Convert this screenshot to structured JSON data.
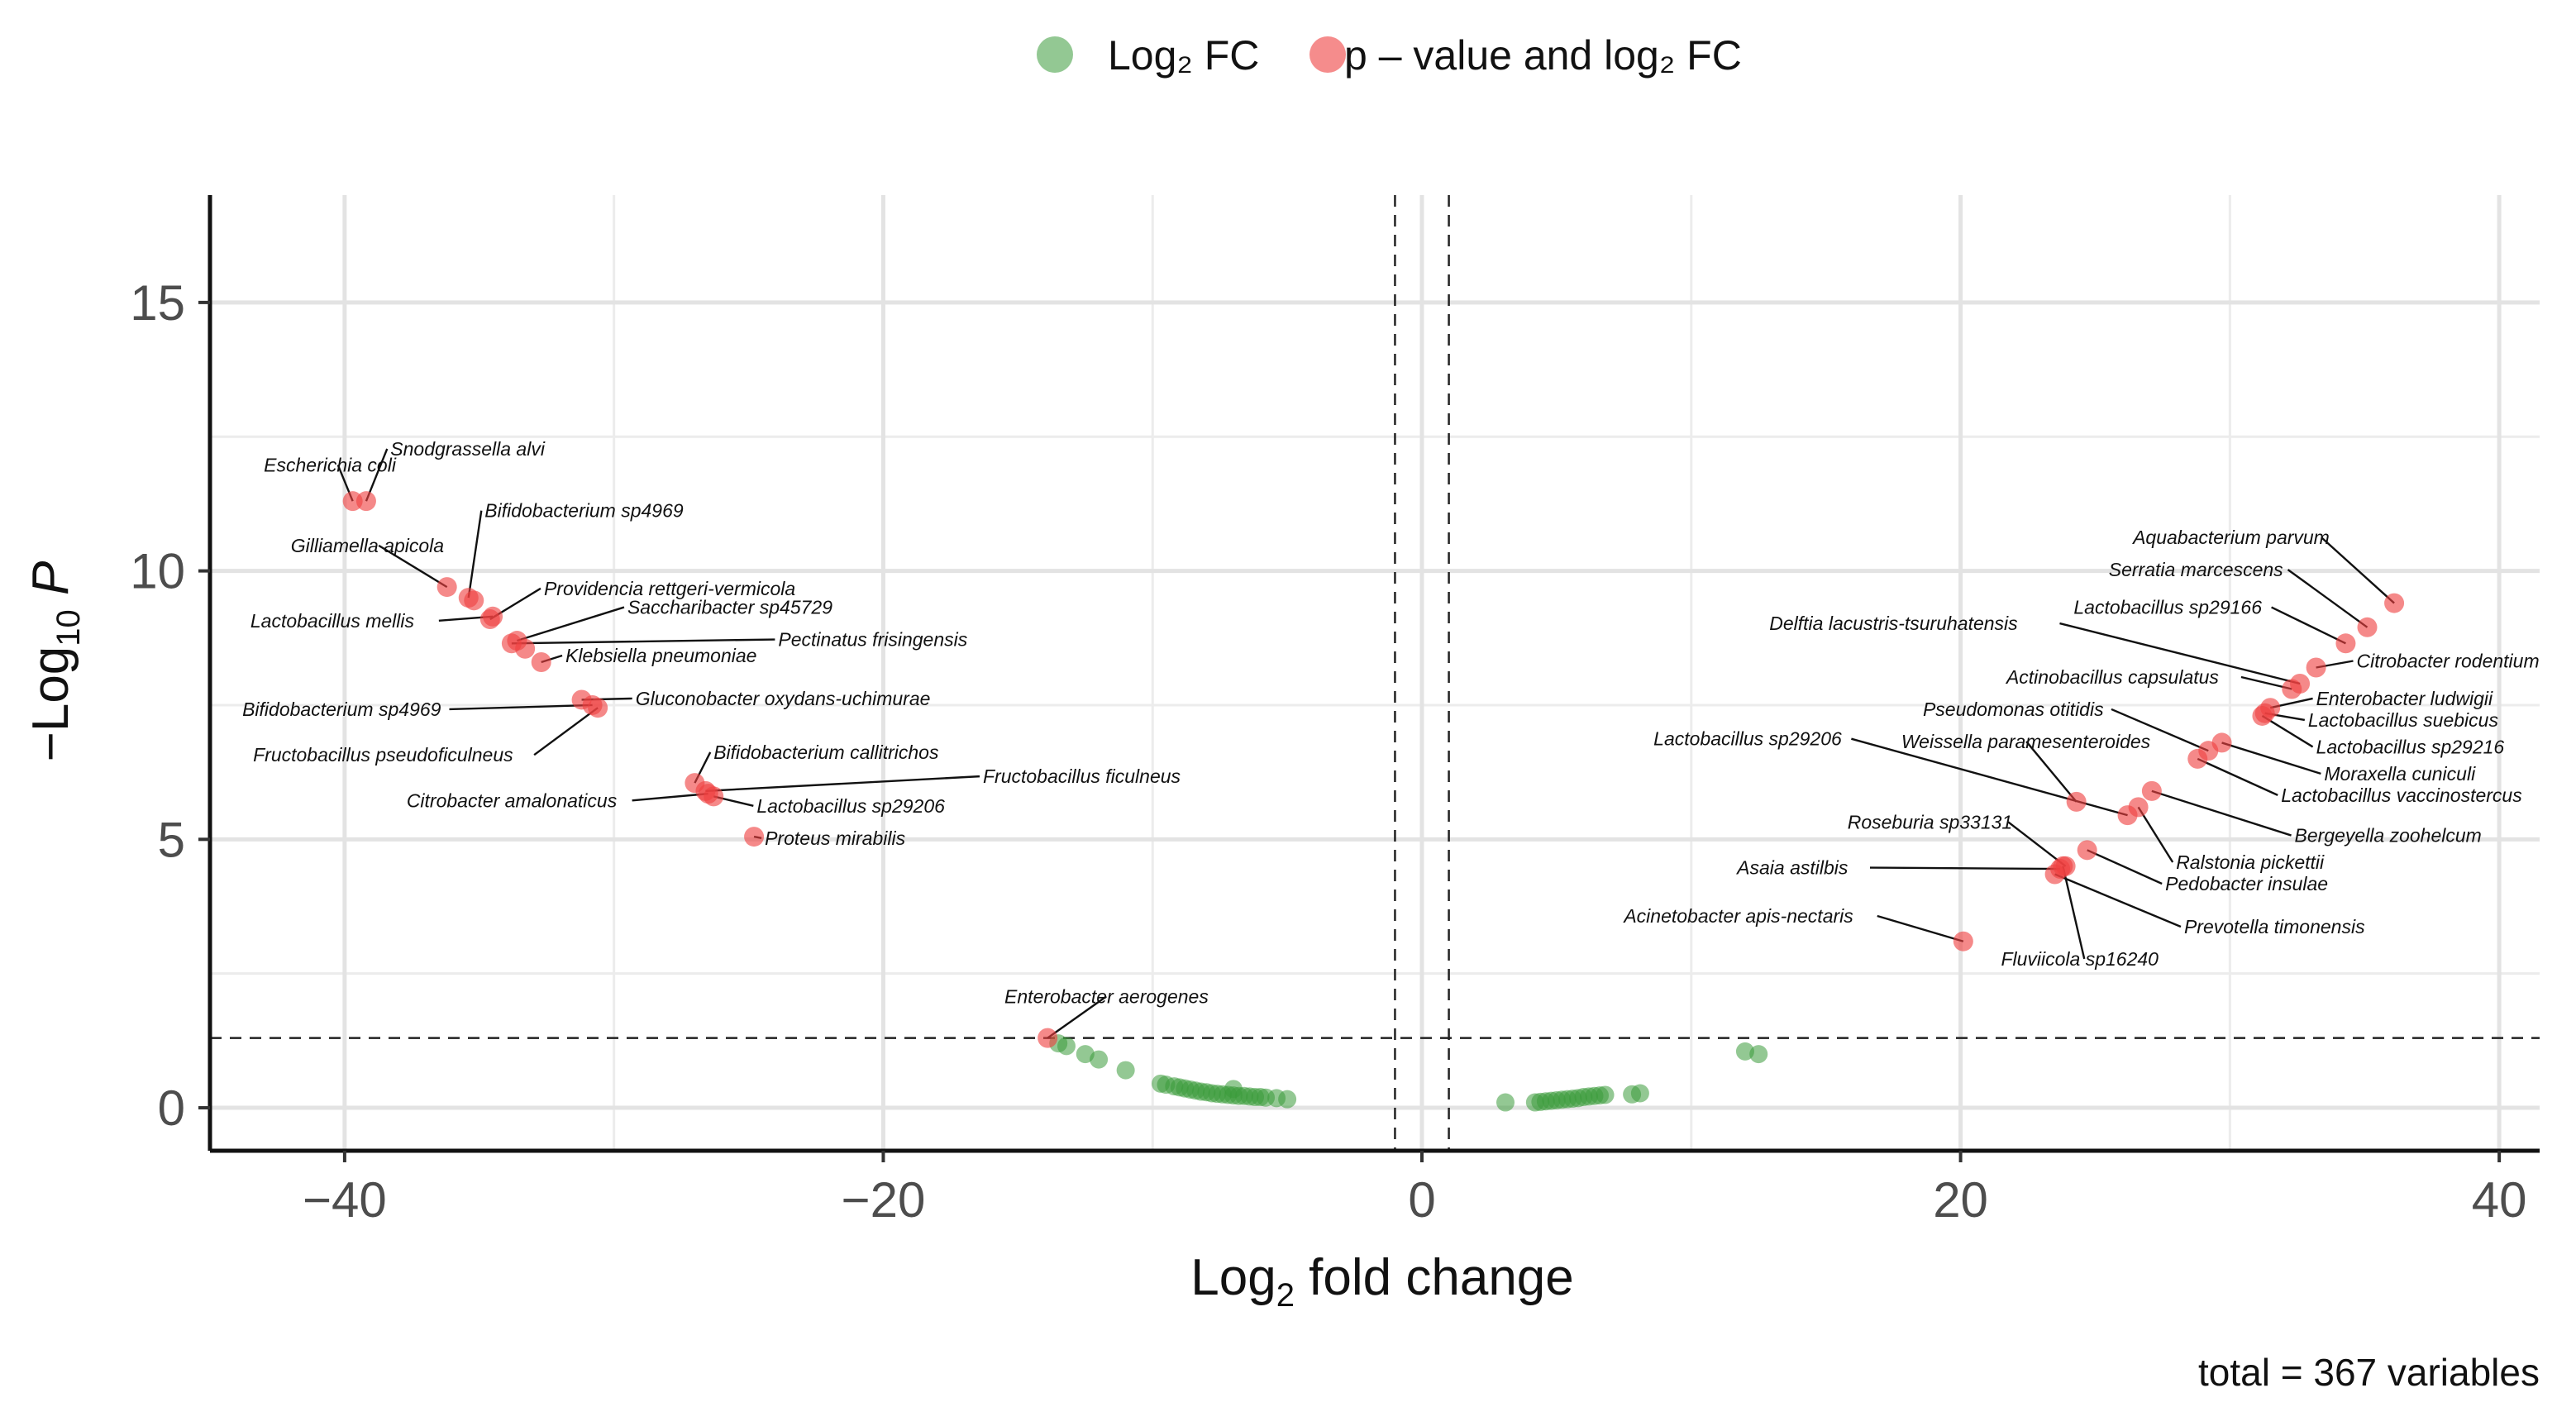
{
  "chart_data": {
    "type": "scatter",
    "title": "",
    "xlabel": "Log2 fold change",
    "ylabel": "-Log10 P",
    "xlim": [
      -45,
      41.5
    ],
    "ylim": [
      -0.8,
      17
    ],
    "x_ticks": [
      -40,
      -20,
      0,
      20,
      40
    ],
    "x_tick_labels": [
      "−40",
      "−20",
      "0",
      "20",
      "40"
    ],
    "y_ticks": [
      0,
      5,
      10,
      15
    ],
    "y_tick_labels": [
      "0",
      "5",
      "10",
      "15"
    ],
    "grid": true,
    "cutoffs": {
      "log2fc": [
        -1,
        1
      ],
      "neg_log10_p": 1.3
    },
    "legend": {
      "position": "top",
      "entries": [
        {
          "name": "Log₂ FC",
          "color": "#3a9a3a"
        },
        {
          "name": "p – value and log₂ FC",
          "color": "#ef4040"
        }
      ]
    },
    "caption": "total = 367 variables",
    "series": [
      {
        "name": "Log₂ FC",
        "color": "#3a9a3a",
        "points": [
          {
            "x": -13.5,
            "y": 1.2
          },
          {
            "x": -13.2,
            "y": 1.15
          },
          {
            "x": -12.5,
            "y": 1.0
          },
          {
            "x": -12.0,
            "y": 0.9
          },
          {
            "x": -11.0,
            "y": 0.7
          },
          {
            "x": -9.7,
            "y": 0.45
          },
          {
            "x": -9.5,
            "y": 0.43
          },
          {
            "x": -9.2,
            "y": 0.4
          },
          {
            "x": -9.0,
            "y": 0.38
          },
          {
            "x": -8.8,
            "y": 0.36
          },
          {
            "x": -8.6,
            "y": 0.34
          },
          {
            "x": -8.4,
            "y": 0.32
          },
          {
            "x": -8.2,
            "y": 0.3
          },
          {
            "x": -8.0,
            "y": 0.29
          },
          {
            "x": -7.8,
            "y": 0.27
          },
          {
            "x": -7.6,
            "y": 0.26
          },
          {
            "x": -7.4,
            "y": 0.25
          },
          {
            "x": -7.2,
            "y": 0.24
          },
          {
            "x": -7.0,
            "y": 0.23
          },
          {
            "x": -6.8,
            "y": 0.22
          },
          {
            "x": -6.6,
            "y": 0.22
          },
          {
            "x": -6.4,
            "y": 0.21
          },
          {
            "x": -6.2,
            "y": 0.2
          },
          {
            "x": -6.0,
            "y": 0.2
          },
          {
            "x": -5.8,
            "y": 0.19
          },
          {
            "x": -7.0,
            "y": 0.35
          },
          {
            "x": -5.4,
            "y": 0.18
          },
          {
            "x": -5.0,
            "y": 0.16
          },
          {
            "x": 3.1,
            "y": 0.1
          },
          {
            "x": 4.2,
            "y": 0.1
          },
          {
            "x": 4.4,
            "y": 0.11
          },
          {
            "x": 4.6,
            "y": 0.12
          },
          {
            "x": 4.8,
            "y": 0.13
          },
          {
            "x": 5.0,
            "y": 0.14
          },
          {
            "x": 5.2,
            "y": 0.15
          },
          {
            "x": 5.4,
            "y": 0.16
          },
          {
            "x": 5.6,
            "y": 0.17
          },
          {
            "x": 5.8,
            "y": 0.18
          },
          {
            "x": 6.0,
            "y": 0.2
          },
          {
            "x": 6.2,
            "y": 0.21
          },
          {
            "x": 6.4,
            "y": 0.22
          },
          {
            "x": 6.6,
            "y": 0.23
          },
          {
            "x": 6.8,
            "y": 0.24
          },
          {
            "x": 7.8,
            "y": 0.25
          },
          {
            "x": 8.1,
            "y": 0.27
          },
          {
            "x": 12.0,
            "y": 1.05
          },
          {
            "x": 12.5,
            "y": 1.0
          }
        ]
      },
      {
        "name": "p – value and log₂ FC",
        "color": "#ef4040",
        "points": [
          {
            "x": -39.7,
            "y": 11.3,
            "label": "Escherichia coli",
            "lx": -43.0,
            "ly": 11.85,
            "anchor": "start"
          },
          {
            "x": -39.2,
            "y": 11.3,
            "label": "Snodgrassella alvi",
            "lx": -38.3,
            "ly": 12.15,
            "anchor": "start"
          },
          {
            "x": -36.2,
            "y": 9.7,
            "label": "Gilliamella apicola",
            "lx": -42.0,
            "ly": 10.35,
            "anchor": "start"
          },
          {
            "x": -35.4,
            "y": 9.5,
            "label": "Bifidobacterium sp4969",
            "lx": -34.8,
            "ly": 11.0,
            "anchor": "start"
          },
          {
            "x": -35.2,
            "y": 9.45,
            "label": "",
            "lx": 0,
            "ly": 0,
            "anchor": "start"
          },
          {
            "x": -34.5,
            "y": 9.15,
            "label": "Lactobacillus mellis",
            "lx": -43.5,
            "ly": 8.95,
            "anchor": "start"
          },
          {
            "x": -34.6,
            "y": 9.1,
            "label": "Providencia rettgeri-vermicola",
            "lx": -32.6,
            "ly": 9.55,
            "anchor": "start"
          },
          {
            "x": -33.6,
            "y": 8.7,
            "label": "Saccharibacter sp45729",
            "lx": -29.5,
            "ly": 9.2,
            "anchor": "start"
          },
          {
            "x": -33.8,
            "y": 8.65,
            "label": "Pectinatus frisingensis",
            "lx": -23.9,
            "ly": 8.6,
            "anchor": "start"
          },
          {
            "x": -33.3,
            "y": 8.55,
            "label": "",
            "lx": 0,
            "ly": 0,
            "anchor": "start"
          },
          {
            "x": -32.7,
            "y": 8.3,
            "label": "Klebsiella pneumoniae",
            "lx": -31.8,
            "ly": 8.3,
            "anchor": "start"
          },
          {
            "x": -31.2,
            "y": 7.6,
            "label": "Gluconobacter oxydans-uchimurae",
            "lx": -29.2,
            "ly": 7.5,
            "anchor": "start"
          },
          {
            "x": -30.8,
            "y": 7.5,
            "label": "Bifidobacterium sp4969",
            "lx": -43.8,
            "ly": 7.3,
            "anchor": "start"
          },
          {
            "x": -30.6,
            "y": 7.45,
            "label": "Fructobacillus pseudoficulneus",
            "lx": -43.4,
            "ly": 6.45,
            "anchor": "start"
          },
          {
            "x": -27.0,
            "y": 6.05,
            "label": "Bifidobacterium callitrichos",
            "lx": -26.3,
            "ly": 6.5,
            "anchor": "start"
          },
          {
            "x": -26.6,
            "y": 5.9,
            "label": "Fructobacillus ficulneus",
            "lx": -16.3,
            "ly": 6.05,
            "anchor": "start"
          },
          {
            "x": -26.5,
            "y": 5.85,
            "label": "Citrobacter amalonaticus",
            "lx": -37.7,
            "ly": 5.6,
            "anchor": "start"
          },
          {
            "x": -26.3,
            "y": 5.8,
            "label": "Lactobacillus sp29206",
            "lx": -24.7,
            "ly": 5.5,
            "anchor": "start"
          },
          {
            "x": -24.8,
            "y": 5.05,
            "label": "Proteus mirabilis",
            "lx": -24.4,
            "ly": 4.9,
            "anchor": "start"
          },
          {
            "x": -13.9,
            "y": 1.3,
            "label": "Enterobacter aerogenes",
            "lx": -15.5,
            "ly": 1.95,
            "anchor": "start"
          },
          {
            "x": 36.1,
            "y": 9.4,
            "label": "Aquabacterium parvum",
            "lx": 26.4,
            "ly": 10.5,
            "anchor": "start"
          },
          {
            "x": 35.1,
            "y": 8.95,
            "label": "Serratia marcescens",
            "lx": 25.5,
            "ly": 9.9,
            "anchor": "start"
          },
          {
            "x": 34.3,
            "y": 8.65,
            "label": "Lactobacillus sp29166",
            "lx": 24.2,
            "ly": 9.2,
            "anchor": "start"
          },
          {
            "x": 33.2,
            "y": 8.2,
            "label": "Citrobacter rodentium",
            "lx": 34.7,
            "ly": 8.2,
            "anchor": "start"
          },
          {
            "x": 32.6,
            "y": 7.9,
            "label": "Delftia lacustris-tsuruhatensis",
            "lx": 12.9,
            "ly": 8.9,
            "anchor": "start"
          },
          {
            "x": 32.3,
            "y": 7.8,
            "label": "Actinobacillus capsulatus",
            "lx": 21.7,
            "ly": 7.9,
            "anchor": "start"
          },
          {
            "x": 31.5,
            "y": 7.45,
            "label": "Enterobacter ludwigii",
            "lx": 33.2,
            "ly": 7.5,
            "anchor": "start"
          },
          {
            "x": 31.3,
            "y": 7.35,
            "label": "Lactobacillus suebicus",
            "lx": 32.9,
            "ly": 7.1,
            "anchor": "start"
          },
          {
            "x": 31.2,
            "y": 7.3,
            "label": "Lactobacillus sp29216",
            "lx": 33.2,
            "ly": 6.6,
            "anchor": "start"
          },
          {
            "x": 29.7,
            "y": 6.8,
            "label": "Moraxella cuniculi",
            "lx": 33.5,
            "ly": 6.1,
            "anchor": "start"
          },
          {
            "x": 29.2,
            "y": 6.65,
            "label": "Pseudomonas otitidis",
            "lx": 18.6,
            "ly": 7.3,
            "anchor": "start"
          },
          {
            "x": 28.8,
            "y": 6.5,
            "label": "Lactobacillus vaccinostercus",
            "lx": 31.9,
            "ly": 5.7,
            "anchor": "start"
          },
          {
            "x": 27.1,
            "y": 5.9,
            "label": "Bergeyella zoohelcum",
            "lx": 32.4,
            "ly": 4.95,
            "anchor": "start"
          },
          {
            "x": 26.6,
            "y": 5.6,
            "label": "Ralstonia pickettii",
            "lx": 28.0,
            "ly": 4.45,
            "anchor": "start"
          },
          {
            "x": 26.2,
            "y": 5.45,
            "label": "Lactobacillus sp29206",
            "lx": 8.6,
            "ly": 6.75,
            "anchor": "start"
          },
          {
            "x": 24.3,
            "y": 5.7,
            "label": "Weissella paramesenteroides",
            "lx": 17.8,
            "ly": 6.7,
            "anchor": "start"
          },
          {
            "x": 24.7,
            "y": 4.8,
            "label": "Pedobacter insulae",
            "lx": 27.6,
            "ly": 4.05,
            "anchor": "start"
          },
          {
            "x": 23.9,
            "y": 4.5,
            "label": "Roseburia sp33131",
            "lx": 15.8,
            "ly": 5.2,
            "anchor": "start"
          },
          {
            "x": 23.7,
            "y": 4.45,
            "label": "Asaia astilbis",
            "lx": 11.7,
            "ly": 4.35,
            "anchor": "start"
          },
          {
            "x": 23.5,
            "y": 4.35,
            "label": "Prevotella timonensis",
            "lx": 28.3,
            "ly": 3.25,
            "anchor": "start"
          },
          {
            "x": 23.8,
            "y": 4.5,
            "label": "Fluviicola sp16240",
            "lx": 21.5,
            "ly": 2.65,
            "anchor": "start"
          },
          {
            "x": 20.1,
            "y": 3.1,
            "label": "Acinetobacter apis-nectaris",
            "lx": 7.5,
            "ly": 3.45,
            "anchor": "start"
          }
        ]
      }
    ]
  }
}
